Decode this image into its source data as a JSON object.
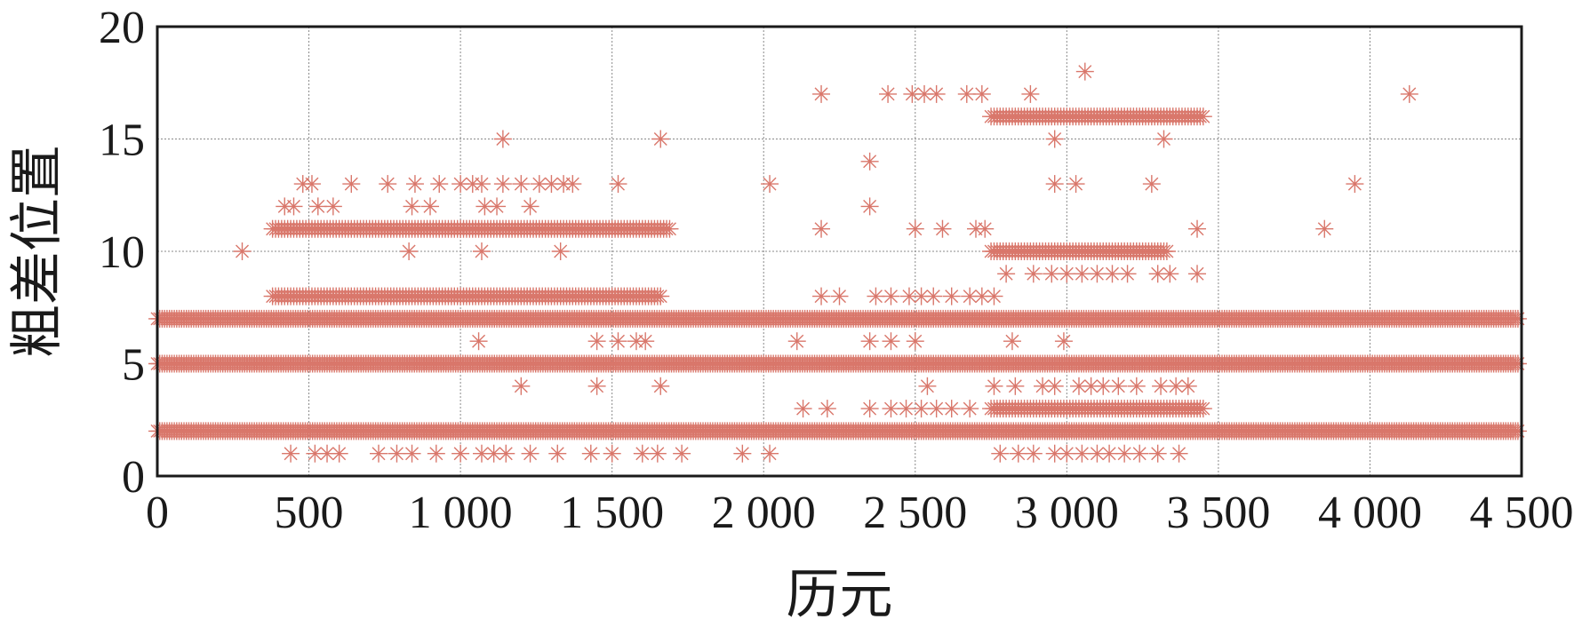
{
  "chart_data": {
    "type": "scatter",
    "title": "",
    "xlabel": "历元",
    "ylabel": "粗差位置",
    "xlim": [
      0,
      4500
    ],
    "ylim": [
      0,
      20
    ],
    "x_ticks": [
      {
        "value": 0,
        "label": "0"
      },
      {
        "value": 500,
        "label": "500"
      },
      {
        "value": 1000,
        "label": "1 000"
      },
      {
        "value": 1500,
        "label": "1 500"
      },
      {
        "value": 2000,
        "label": "2 000"
      },
      {
        "value": 2500,
        "label": "2 500"
      },
      {
        "value": 3000,
        "label": "3 000"
      },
      {
        "value": 3500,
        "label": "3 500"
      },
      {
        "value": 4000,
        "label": "4 000"
      },
      {
        "value": 4500,
        "label": "4 500"
      }
    ],
    "y_ticks": [
      {
        "value": 0,
        "label": "0"
      },
      {
        "value": 5,
        "label": "5"
      },
      {
        "value": 10,
        "label": "10"
      },
      {
        "value": 15,
        "label": "15"
      },
      {
        "value": 20,
        "label": "20"
      }
    ],
    "grid": true,
    "marker": "asterisk",
    "marker_color": "#d9776b",
    "continuous_bands": [
      {
        "y": 2,
        "x_start": 0,
        "x_end": 4490
      },
      {
        "y": 5,
        "x_start": 0,
        "x_end": 4490
      },
      {
        "y": 7,
        "x_start": 0,
        "x_end": 4490
      }
    ],
    "dense_segments": [
      {
        "y": 11,
        "x_start": 380,
        "x_end": 1690
      },
      {
        "y": 16,
        "x_start": 2750,
        "x_end": 3450
      },
      {
        "y": 10,
        "x_start": 2750,
        "x_end": 3330
      },
      {
        "y": 3,
        "x_start": 2750,
        "x_end": 3450
      },
      {
        "y": 8,
        "x_start": 380,
        "x_end": 1660
      }
    ],
    "points": [
      {
        "x": 280,
        "y": 10
      },
      {
        "x": 420,
        "y": 12
      },
      {
        "x": 450,
        "y": 12
      },
      {
        "x": 530,
        "y": 12
      },
      {
        "x": 580,
        "y": 12
      },
      {
        "x": 840,
        "y": 12
      },
      {
        "x": 900,
        "y": 12
      },
      {
        "x": 1080,
        "y": 12
      },
      {
        "x": 1120,
        "y": 12
      },
      {
        "x": 1230,
        "y": 12
      },
      {
        "x": 480,
        "y": 13
      },
      {
        "x": 510,
        "y": 13
      },
      {
        "x": 640,
        "y": 13
      },
      {
        "x": 760,
        "y": 13
      },
      {
        "x": 850,
        "y": 13
      },
      {
        "x": 930,
        "y": 13
      },
      {
        "x": 1000,
        "y": 13
      },
      {
        "x": 1040,
        "y": 13
      },
      {
        "x": 1070,
        "y": 13
      },
      {
        "x": 1140,
        "y": 13
      },
      {
        "x": 1200,
        "y": 13
      },
      {
        "x": 1260,
        "y": 13
      },
      {
        "x": 1300,
        "y": 13
      },
      {
        "x": 1340,
        "y": 13
      },
      {
        "x": 1370,
        "y": 13
      },
      {
        "x": 1520,
        "y": 13
      },
      {
        "x": 1140,
        "y": 15
      },
      {
        "x": 1660,
        "y": 15
      },
      {
        "x": 830,
        "y": 10
      },
      {
        "x": 1070,
        "y": 10
      },
      {
        "x": 1330,
        "y": 10
      },
      {
        "x": 1060,
        "y": 6
      },
      {
        "x": 1450,
        "y": 6
      },
      {
        "x": 1520,
        "y": 6
      },
      {
        "x": 1580,
        "y": 6
      },
      {
        "x": 1610,
        "y": 6
      },
      {
        "x": 1200,
        "y": 4
      },
      {
        "x": 1450,
        "y": 4
      },
      {
        "x": 1660,
        "y": 4
      },
      {
        "x": 440,
        "y": 1
      },
      {
        "x": 520,
        "y": 1
      },
      {
        "x": 560,
        "y": 1
      },
      {
        "x": 600,
        "y": 1
      },
      {
        "x": 730,
        "y": 1
      },
      {
        "x": 790,
        "y": 1
      },
      {
        "x": 840,
        "y": 1
      },
      {
        "x": 920,
        "y": 1
      },
      {
        "x": 1000,
        "y": 1
      },
      {
        "x": 1070,
        "y": 1
      },
      {
        "x": 1110,
        "y": 1
      },
      {
        "x": 1150,
        "y": 1
      },
      {
        "x": 1230,
        "y": 1
      },
      {
        "x": 1320,
        "y": 1
      },
      {
        "x": 1430,
        "y": 1
      },
      {
        "x": 1500,
        "y": 1
      },
      {
        "x": 1600,
        "y": 1
      },
      {
        "x": 1650,
        "y": 1
      },
      {
        "x": 1730,
        "y": 1
      },
      {
        "x": 1930,
        "y": 1
      },
      {
        "x": 2020,
        "y": 1
      },
      {
        "x": 2020,
        "y": 13
      },
      {
        "x": 2190,
        "y": 17
      },
      {
        "x": 2410,
        "y": 17
      },
      {
        "x": 2490,
        "y": 17
      },
      {
        "x": 2530,
        "y": 17
      },
      {
        "x": 2570,
        "y": 17
      },
      {
        "x": 2670,
        "y": 17
      },
      {
        "x": 2720,
        "y": 17
      },
      {
        "x": 2880,
        "y": 17
      },
      {
        "x": 4130,
        "y": 17
      },
      {
        "x": 3060,
        "y": 18
      },
      {
        "x": 2350,
        "y": 14
      },
      {
        "x": 2350,
        "y": 12
      },
      {
        "x": 2190,
        "y": 11
      },
      {
        "x": 2500,
        "y": 11
      },
      {
        "x": 2590,
        "y": 11
      },
      {
        "x": 2700,
        "y": 11
      },
      {
        "x": 2730,
        "y": 11
      },
      {
        "x": 3430,
        "y": 11
      },
      {
        "x": 3850,
        "y": 11
      },
      {
        "x": 2960,
        "y": 15
      },
      {
        "x": 3320,
        "y": 15
      },
      {
        "x": 2960,
        "y": 13
      },
      {
        "x": 3030,
        "y": 13
      },
      {
        "x": 3280,
        "y": 13
      },
      {
        "x": 3950,
        "y": 13
      },
      {
        "x": 2190,
        "y": 8
      },
      {
        "x": 2250,
        "y": 8
      },
      {
        "x": 2370,
        "y": 8
      },
      {
        "x": 2420,
        "y": 8
      },
      {
        "x": 2480,
        "y": 8
      },
      {
        "x": 2520,
        "y": 8
      },
      {
        "x": 2560,
        "y": 8
      },
      {
        "x": 2620,
        "y": 8
      },
      {
        "x": 2680,
        "y": 8
      },
      {
        "x": 2720,
        "y": 8
      },
      {
        "x": 2760,
        "y": 8
      },
      {
        "x": 2800,
        "y": 9
      },
      {
        "x": 2890,
        "y": 9
      },
      {
        "x": 2950,
        "y": 9
      },
      {
        "x": 3000,
        "y": 9
      },
      {
        "x": 3050,
        "y": 9
      },
      {
        "x": 3100,
        "y": 9
      },
      {
        "x": 3150,
        "y": 9
      },
      {
        "x": 3200,
        "y": 9
      },
      {
        "x": 3300,
        "y": 9
      },
      {
        "x": 3340,
        "y": 9
      },
      {
        "x": 3430,
        "y": 9
      },
      {
        "x": 2110,
        "y": 6
      },
      {
        "x": 2350,
        "y": 6
      },
      {
        "x": 2420,
        "y": 6
      },
      {
        "x": 2500,
        "y": 6
      },
      {
        "x": 2820,
        "y": 6
      },
      {
        "x": 2990,
        "y": 6
      },
      {
        "x": 2540,
        "y": 4
      },
      {
        "x": 2760,
        "y": 4
      },
      {
        "x": 2830,
        "y": 4
      },
      {
        "x": 2920,
        "y": 4
      },
      {
        "x": 2960,
        "y": 4
      },
      {
        "x": 3040,
        "y": 4
      },
      {
        "x": 3080,
        "y": 4
      },
      {
        "x": 3120,
        "y": 4
      },
      {
        "x": 3170,
        "y": 4
      },
      {
        "x": 3230,
        "y": 4
      },
      {
        "x": 3310,
        "y": 4
      },
      {
        "x": 3360,
        "y": 4
      },
      {
        "x": 3400,
        "y": 4
      },
      {
        "x": 2130,
        "y": 3
      },
      {
        "x": 2210,
        "y": 3
      },
      {
        "x": 2350,
        "y": 3
      },
      {
        "x": 2420,
        "y": 3
      },
      {
        "x": 2470,
        "y": 3
      },
      {
        "x": 2520,
        "y": 3
      },
      {
        "x": 2570,
        "y": 3
      },
      {
        "x": 2620,
        "y": 3
      },
      {
        "x": 2680,
        "y": 3
      },
      {
        "x": 2780,
        "y": 1
      },
      {
        "x": 2840,
        "y": 1
      },
      {
        "x": 2890,
        "y": 1
      },
      {
        "x": 2960,
        "y": 1
      },
      {
        "x": 3000,
        "y": 1
      },
      {
        "x": 3050,
        "y": 1
      },
      {
        "x": 3100,
        "y": 1
      },
      {
        "x": 3140,
        "y": 1
      },
      {
        "x": 3190,
        "y": 1
      },
      {
        "x": 3240,
        "y": 1
      },
      {
        "x": 3300,
        "y": 1
      },
      {
        "x": 3370,
        "y": 1
      }
    ]
  }
}
